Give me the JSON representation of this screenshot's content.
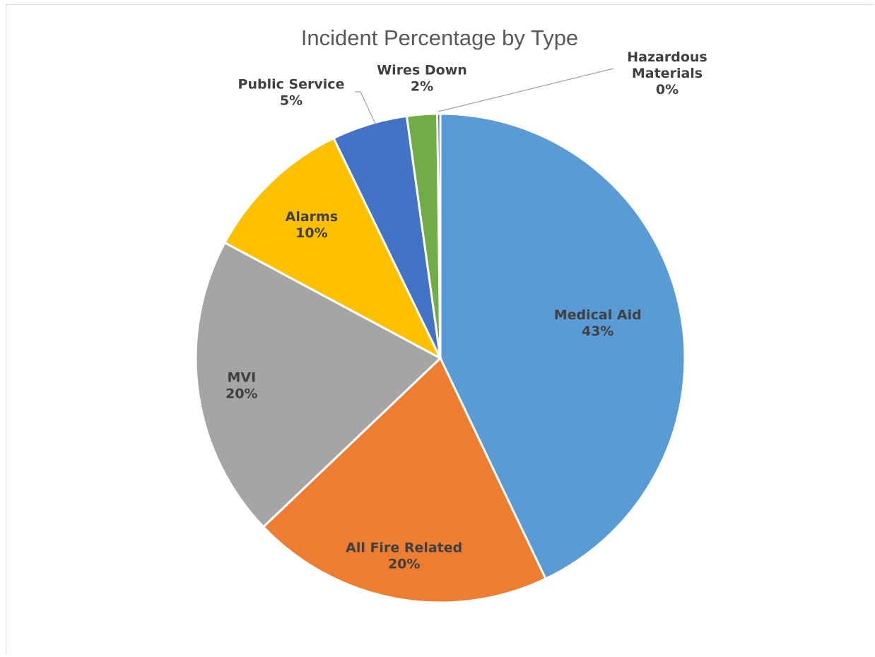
{
  "chart_data": {
    "type": "pie",
    "title": "Incident Percentage by Type",
    "categories": [
      "Medical Aid",
      "All Fire Related",
      "MVI",
      "Alarms",
      "Public Service",
      "Wires Down",
      "Hazardous Materials"
    ],
    "values": [
      43,
      20,
      20,
      10,
      5,
      2,
      0.2
    ],
    "value_labels": [
      "43%",
      "20%",
      "20%",
      "10%",
      "5%",
      "2%",
      "0%"
    ],
    "label_lines": [
      [
        "Medical Aid",
        "43%"
      ],
      [
        "All Fire Related",
        "20%"
      ],
      [
        "MVI",
        "20%"
      ],
      [
        "Alarms",
        "10%"
      ],
      [
        "Public Service",
        "5%"
      ],
      [
        "Wires Down",
        "2%"
      ],
      [
        "Hazardous",
        "Materials",
        "0%"
      ]
    ],
    "colors": [
      "#5b9bd5",
      "#ed7d31",
      "#a5a5a5",
      "#ffc000",
      "#4472c4",
      "#70ad47",
      "#255e91"
    ],
    "legend": "none",
    "start_angle_deg": 0,
    "direction": "clockwise"
  }
}
